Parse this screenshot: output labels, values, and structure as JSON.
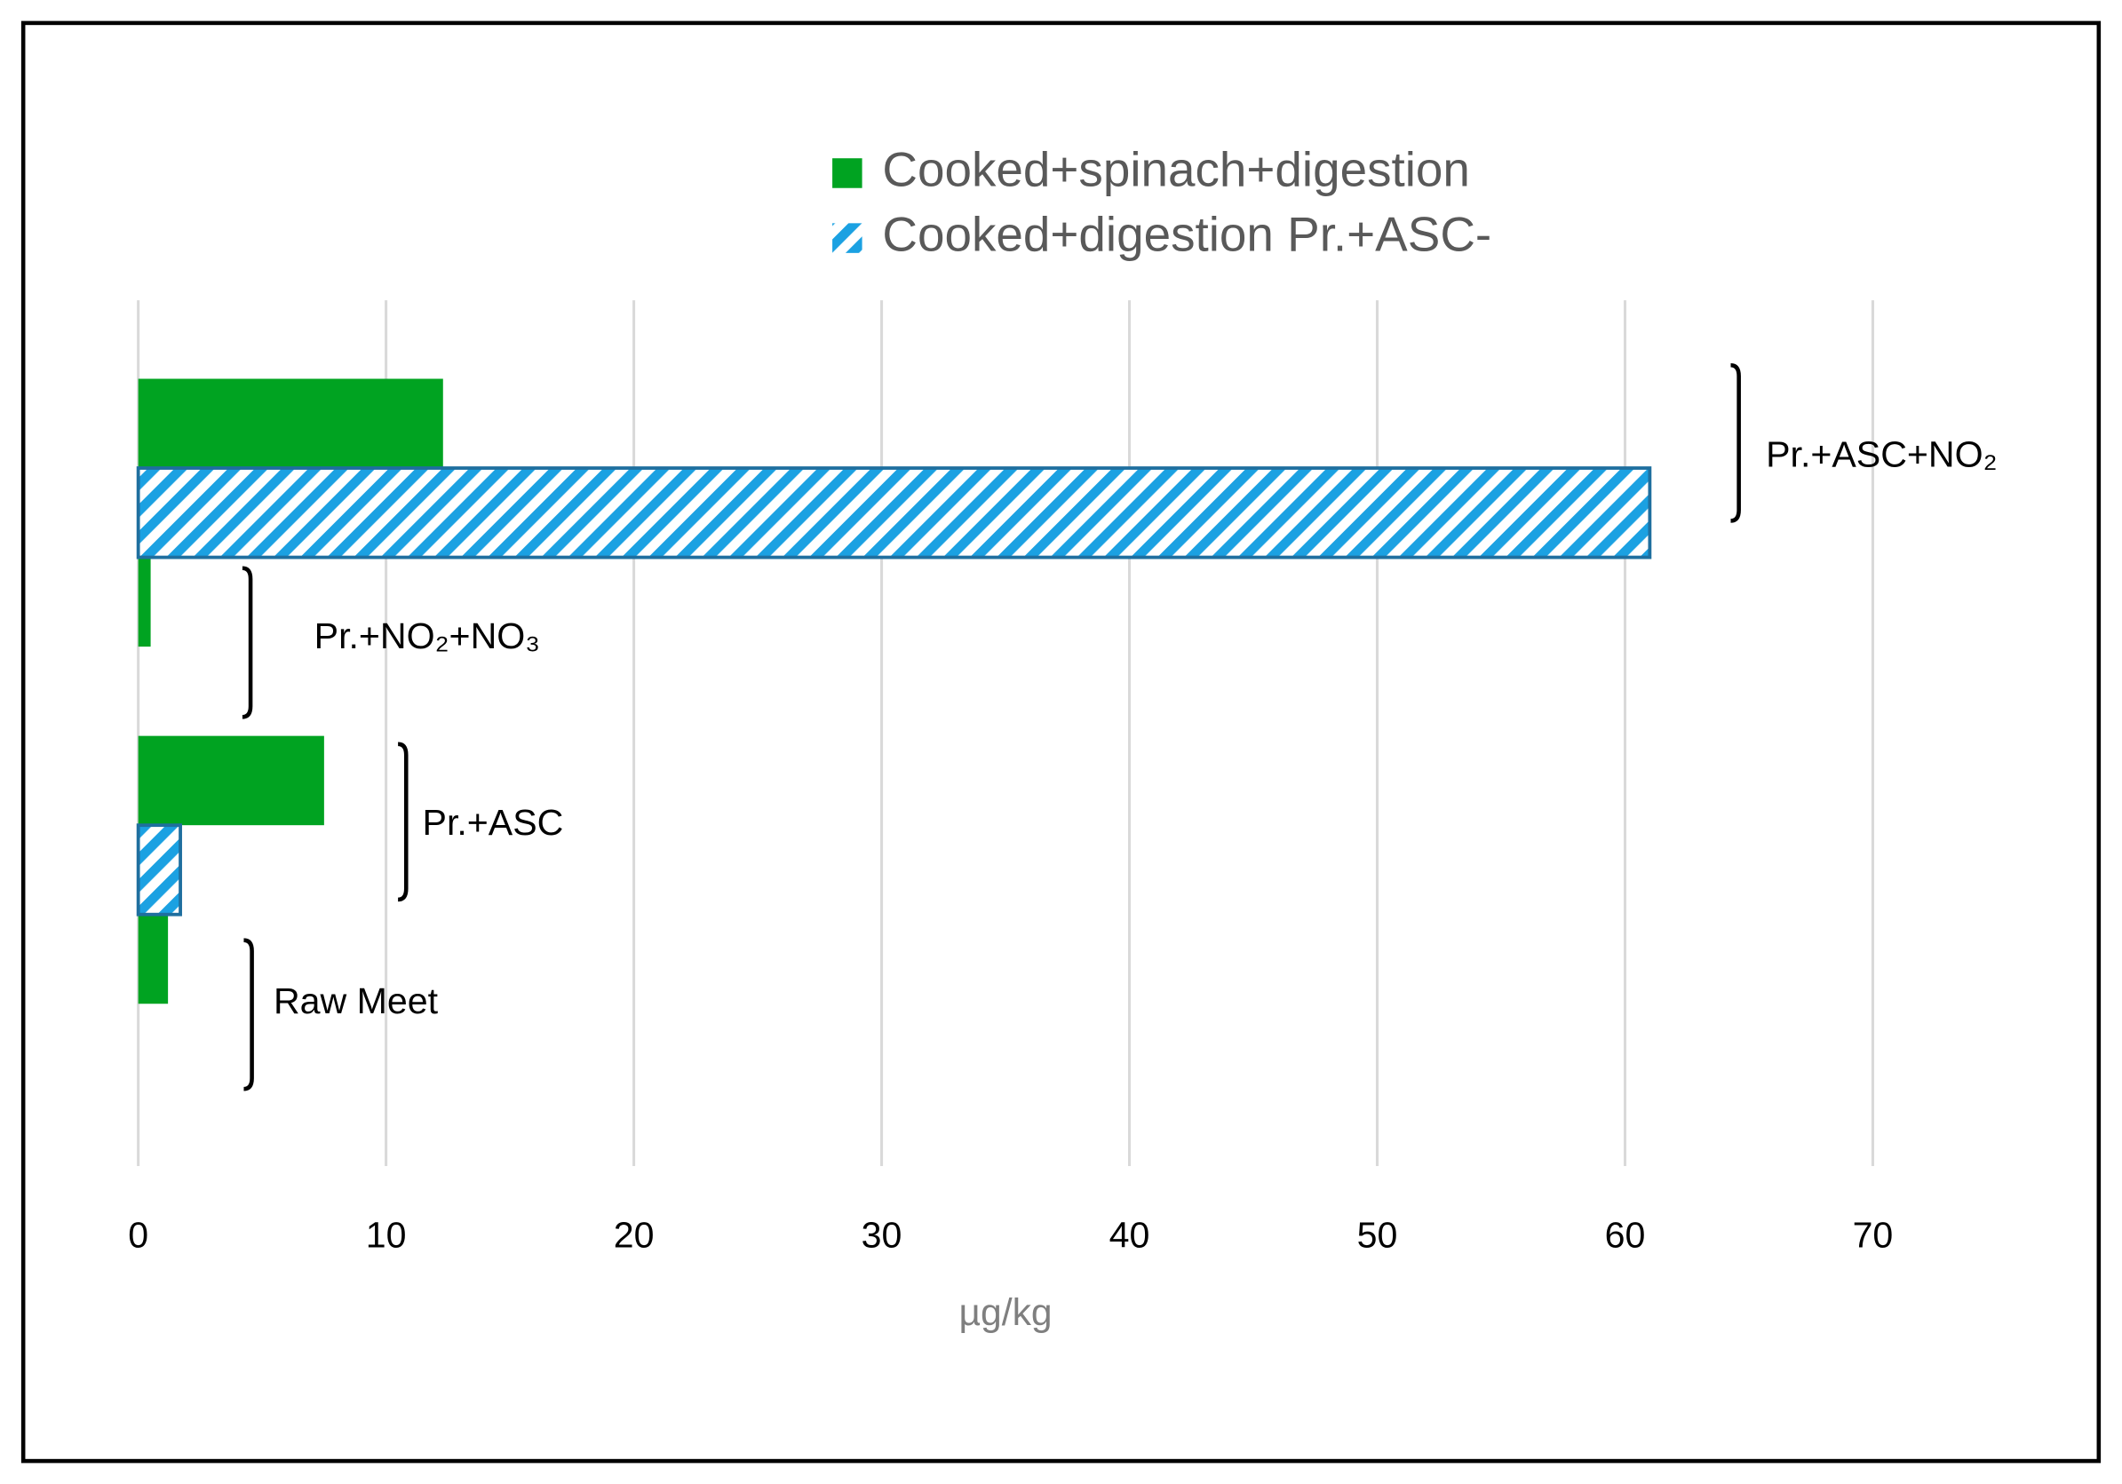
{
  "chart_data": {
    "type": "hbar",
    "categories": [
      "Pr.+ASC+NO₂",
      "Pr.+NO₂+NO₃",
      "Pr.+ASC",
      "Raw Meet"
    ],
    "series": [
      {
        "name": "Cooked+spinach+digestion",
        "color": "#00a321",
        "pattern": "solid",
        "values": [
          12.3,
          0.5,
          7.5,
          1.2
        ]
      },
      {
        "name": "Cooked+digestion Pr.+ASC-",
        "color": "#1ba1e2",
        "pattern": "hatched",
        "values": [
          61,
          null,
          1.7,
          null
        ]
      }
    ],
    "xlabel": "µg/kg",
    "xlim": [
      0,
      70
    ],
    "xticks": [
      0,
      10,
      20,
      30,
      40,
      50,
      60,
      70
    ],
    "grid": true,
    "legend": "top"
  }
}
